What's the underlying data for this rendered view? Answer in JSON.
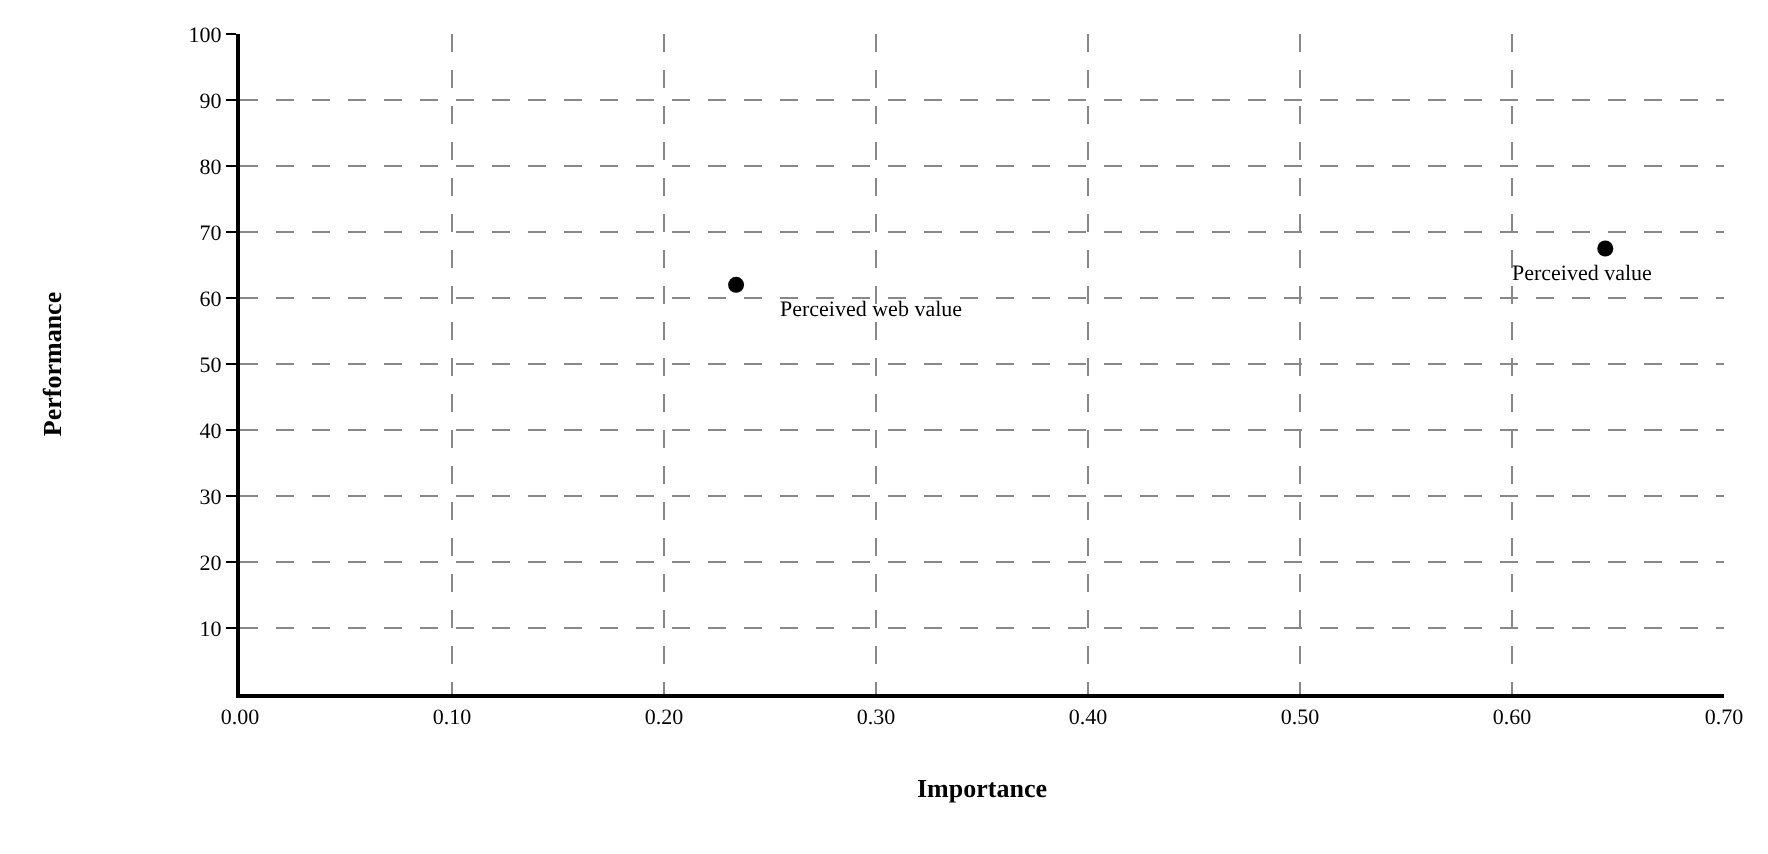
{
  "chart_data": {
    "type": "scatter",
    "xlabel": "Importance",
    "ylabel": "Performance",
    "x": [
      0.234,
      0.644
    ],
    "values": [
      62,
      67.5
    ],
    "color": "#000000",
    "marker": "circle",
    "xlim": [
      0,
      0.7
    ],
    "xticks": [
      {
        "value": 0,
        "label": "0.00"
      },
      {
        "value": 0.1,
        "label": "0.10"
      },
      {
        "value": 0.2,
        "label": "0.20"
      },
      {
        "value": 0.3,
        "label": "0.30"
      },
      {
        "value": 0.4,
        "label": "0.40"
      },
      {
        "value": 0.5,
        "label": "0.50"
      },
      {
        "value": 0.6,
        "label": "0.60"
      },
      {
        "value": 0.7,
        "label": "0.70"
      }
    ],
    "ylim": [
      0,
      100
    ],
    "yticks": [
      10,
      20,
      30,
      40,
      50,
      60,
      70,
      80,
      90,
      100
    ],
    "grid": true,
    "annotations": [
      {
        "text": "Perceived web value",
        "x": 0.234,
        "y": 62
      },
      {
        "text": "Perceived value",
        "x": 0.644,
        "y": 67.5
      }
    ]
  }
}
